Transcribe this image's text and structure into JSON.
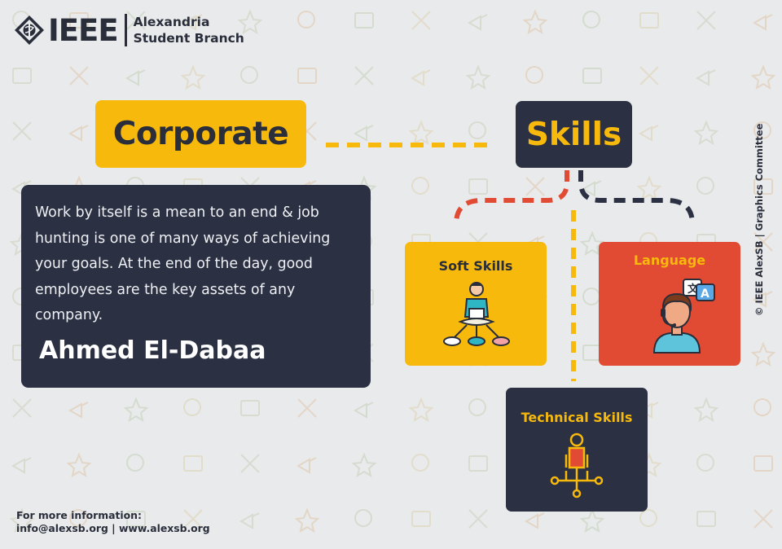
{
  "logo": {
    "wordmark": "IEEE",
    "branch_line1": "Alexandria",
    "branch_line2": "Student Branch"
  },
  "titles": {
    "left": "Corporate",
    "right": "Skills"
  },
  "quote": {
    "text": "Work by itself is a mean to an end & job hunting is one of many ways of achieving your goals. At the end of the day, good employees are the key assets of any company.",
    "author": "Ahmed El-Dabaa"
  },
  "skills": {
    "soft": "Soft Skills",
    "language": "Language",
    "technical": "Technical Skills"
  },
  "credit": "© IEEE AlexSB | Graphics Committee",
  "footer": {
    "line1": "For more information:",
    "line2": "info@alexsb.org | www.alexsb.org"
  },
  "colors": {
    "yellow": "#f7b90b",
    "navy": "#2b3042",
    "red": "#e24b33",
    "background": "#e9eaec"
  },
  "icons": [
    "ieee-diamond-logo-icon",
    "person-presenting-icon",
    "person-headset-translate-icon",
    "technical-network-person-icon"
  ]
}
